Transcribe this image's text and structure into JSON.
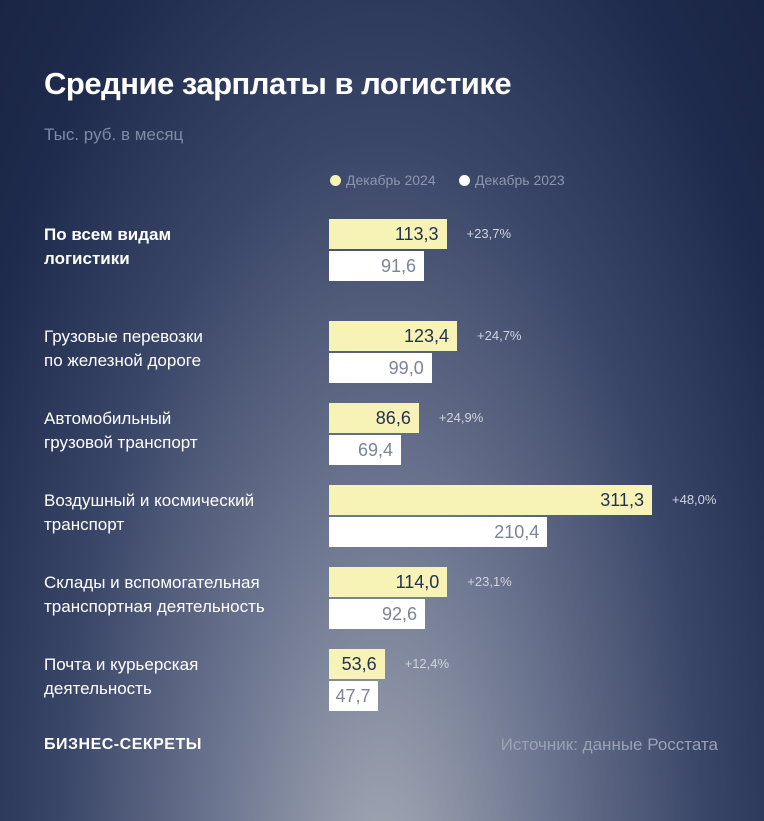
{
  "chart_data": {
    "type": "bar",
    "orientation": "horizontal",
    "title": "Средние зарплаты в логистике",
    "subtitle": "Тыс. руб. в месяц",
    "categories": [
      "По всем видам\nлогистики",
      "Грузовые перевозки\nпо железной дороге",
      "Автомобильный\nгрузовой транспорт",
      "Воздушный и космический\nтранспорт",
      "Склады и вспомогательная\nтранспортная деятельность",
      "Почта и курьерская\nдеятельность"
    ],
    "series": [
      {
        "name": "Декабрь 2024",
        "color": "#f7f2b6",
        "values": [
          113.3,
          123.4,
          86.6,
          311.3,
          114.0,
          53.6
        ],
        "value_labels": [
          "113,3",
          "123,4",
          "86,6",
          "311,3",
          "114,0",
          "53,6"
        ]
      },
      {
        "name": "Декабрь 2023",
        "color": "#ffffff",
        "values": [
          91.6,
          99.0,
          69.4,
          210.4,
          92.6,
          47.7
        ],
        "value_labels": [
          "91,6",
          "99,0",
          "69,4",
          "210,4",
          "92,6",
          "47,7"
        ]
      }
    ],
    "changes": [
      "+23,7%",
      "+24,7%",
      "+24,9%",
      "+48,0%",
      "+23,1%",
      "+12,4%"
    ],
    "brand": "БИЗНЕС-СЕКРЕТЫ",
    "source": "Источник: данные Росстата"
  }
}
